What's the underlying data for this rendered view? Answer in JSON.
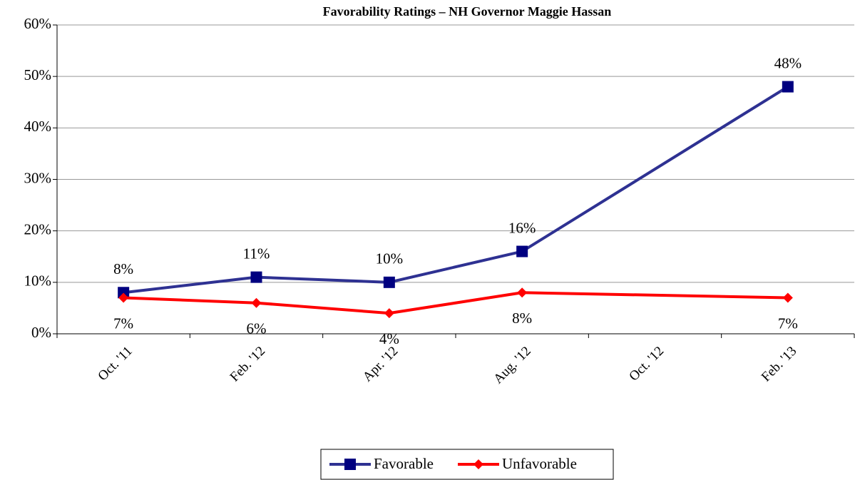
{
  "chart_data": {
    "type": "line",
    "title": "Favorability Ratings – NH Governor Maggie Hassan",
    "categories": [
      "Oct. '11",
      "Feb. '12",
      "Apr. '12",
      "Aug. '12",
      "Oct. '12",
      "Feb. '13"
    ],
    "series": [
      {
        "name": "Favorable",
        "color": "#2e3192",
        "marker_color": "#000080",
        "marker": "square",
        "values": [
          8,
          11,
          10,
          16,
          null,
          48
        ],
        "value_labels": [
          "8%",
          "11%",
          "10%",
          "16%",
          null,
          "48%"
        ],
        "label_position": "above"
      },
      {
        "name": "Unfavorable",
        "color": "#ff0000",
        "marker_color": "#ff0000",
        "marker": "diamond",
        "values": [
          7,
          6,
          4,
          8,
          null,
          7
        ],
        "value_labels": [
          "7%",
          "6%",
          "4%",
          "8%",
          null,
          "7%"
        ],
        "label_position": "below"
      }
    ],
    "ylim": [
      0,
      60
    ],
    "yticks": [
      {
        "value": 0,
        "label": "0%"
      },
      {
        "value": 10,
        "label": "10%"
      },
      {
        "value": 20,
        "label": "20%"
      },
      {
        "value": 30,
        "label": "30%"
      },
      {
        "value": 40,
        "label": "40%"
      },
      {
        "value": 50,
        "label": "50%"
      },
      {
        "value": 60,
        "label": "60%"
      }
    ],
    "grid": true,
    "span_gaps": true,
    "legend": "bottom"
  }
}
